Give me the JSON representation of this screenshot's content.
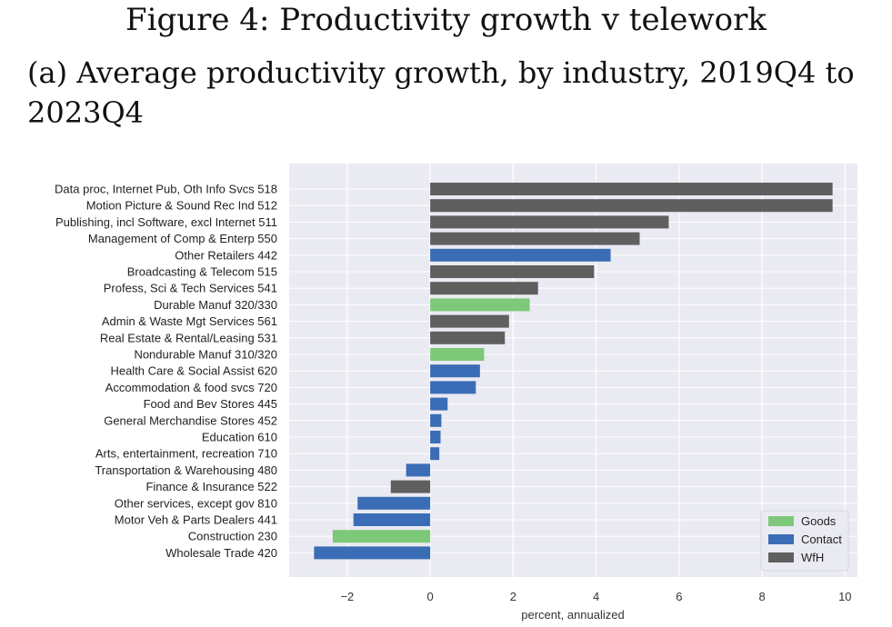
{
  "figure_title": "Figure 4: Productivity growth v telework",
  "subcaption": "(a) Average productivity growth, by industry, 2019Q4 to 2023Q4",
  "chart_data": {
    "type": "bar",
    "orientation": "horizontal",
    "xlabel": "percent, annualized",
    "ylabel": "",
    "xlim": [
      -3.4,
      10.3
    ],
    "xticks": [
      -2,
      0,
      2,
      4,
      6,
      8,
      10
    ],
    "xtick_labels": [
      "−2",
      "0",
      "2",
      "4",
      "6",
      "8",
      "10"
    ],
    "grid": true,
    "legend_position": "bottom-right",
    "legend": [
      {
        "name": "Goods",
        "color": "#7ec87a"
      },
      {
        "name": "Contact",
        "color": "#3a6db5"
      },
      {
        "name": "WfH",
        "color": "#5f5f5f"
      }
    ],
    "bars": [
      {
        "label": "Data proc, Internet Pub, Oth Info Svcs 518",
        "value": 9.7,
        "group": "WfH"
      },
      {
        "label": "Motion Picture & Sound Rec Ind 512",
        "value": 9.7,
        "group": "WfH"
      },
      {
        "label": "Publishing, incl Software, excl Internet 511",
        "value": 5.75,
        "group": "WfH"
      },
      {
        "label": "Management of Comp & Enterp 550",
        "value": 5.05,
        "group": "WfH"
      },
      {
        "label": "Other Retailers 442",
        "value": 4.35,
        "group": "Contact"
      },
      {
        "label": "Broadcasting & Telecom 515",
        "value": 3.95,
        "group": "WfH"
      },
      {
        "label": "Profess, Sci & Tech Services 541",
        "value": 2.6,
        "group": "WfH"
      },
      {
        "label": "Durable Manuf 320/330",
        "value": 2.4,
        "group": "Goods"
      },
      {
        "label": "Admin & Waste Mgt Services 561",
        "value": 1.9,
        "group": "WfH"
      },
      {
        "label": "Real Estate & Rental/Leasing 531",
        "value": 1.8,
        "group": "WfH"
      },
      {
        "label": "Nondurable Manuf 310/320",
        "value": 1.3,
        "group": "Goods"
      },
      {
        "label": "Health Care & Social Assist 620",
        "value": 1.2,
        "group": "Contact"
      },
      {
        "label": "Accommodation & food svcs 720",
        "value": 1.1,
        "group": "Contact"
      },
      {
        "label": "Food and Bev Stores 445",
        "value": 0.42,
        "group": "Contact"
      },
      {
        "label": "General Merchandise Stores 452",
        "value": 0.27,
        "group": "Contact"
      },
      {
        "label": "Education 610",
        "value": 0.25,
        "group": "Contact"
      },
      {
        "label": "Arts, entertainment, recreation 710",
        "value": 0.22,
        "group": "Contact"
      },
      {
        "label": "Transportation & Warehousing 480",
        "value": -0.58,
        "group": "Contact"
      },
      {
        "label": "Finance & Insurance 522",
        "value": -0.95,
        "group": "WfH"
      },
      {
        "label": "Other services, except gov 810",
        "value": -1.75,
        "group": "Contact"
      },
      {
        "label": "Motor Veh & Parts Dealers 441",
        "value": -1.85,
        "group": "Contact"
      },
      {
        "label": "Construction 230",
        "value": -2.35,
        "group": "Goods"
      },
      {
        "label": "Wholesale Trade 420",
        "value": -2.8,
        "group": "Contact"
      }
    ]
  }
}
